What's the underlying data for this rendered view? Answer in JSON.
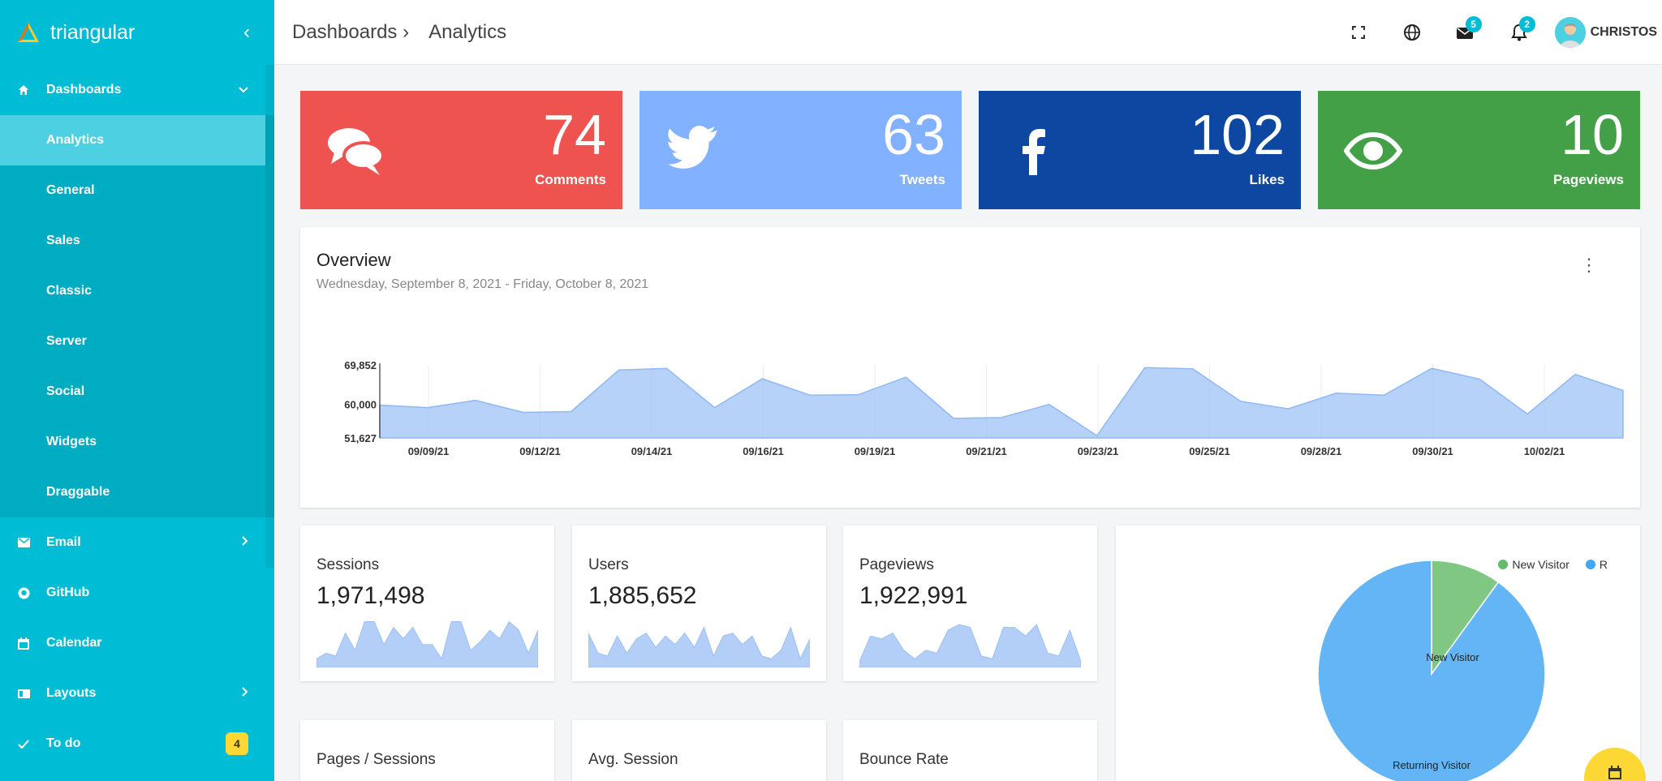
{
  "sidebar": {
    "brand": "triangular",
    "collapse_icon": "‹",
    "dashboards": {
      "label": "Dashboards",
      "items": [
        "Analytics",
        "General",
        "Sales",
        "Classic",
        "Server",
        "Social",
        "Widgets",
        "Draggable"
      ]
    },
    "email": "Email",
    "github": "GitHub",
    "calendar": "Calendar",
    "layouts": "Layouts",
    "todo": "To do",
    "todo_badge": "4"
  },
  "header": {
    "breadcrumb_1": "Dashboards ›",
    "breadcrumb_2": "Analytics",
    "mail_count": "5",
    "notif_count": "2",
    "user": "CHRISTOS"
  },
  "stats": [
    {
      "value": "74",
      "label": "Comments",
      "color": "#ef5350",
      "icon": "comments-icon"
    },
    {
      "value": "63",
      "label": "Tweets",
      "color": "#82b1ff",
      "icon": "twitter-icon"
    },
    {
      "value": "102",
      "label": "Likes",
      "color": "#0d47a1",
      "icon": "facebook-icon"
    },
    {
      "value": "10",
      "label": "Pageviews",
      "color": "#43a047",
      "icon": "eye-icon"
    }
  ],
  "overview": {
    "title": "Overview",
    "range": "Wednesday, September 8, 2021 - Friday, October 8, 2021"
  },
  "metrics": [
    {
      "label": "Sessions",
      "value": "1,971,498"
    },
    {
      "label": "Users",
      "value": "1,885,652"
    },
    {
      "label": "Pageviews",
      "value": "1,922,991"
    },
    {
      "label": "Pages / Sessions",
      "value": ""
    },
    {
      "label": "Avg. Session",
      "value": ""
    },
    {
      "label": "Bounce Rate",
      "value": ""
    }
  ],
  "chart_data": [
    {
      "type": "area",
      "y_tick_labels": [
        "69,852",
        "60,000",
        "51,627"
      ],
      "yticks": [
        69852,
        60000,
        51627
      ],
      "ylim": [
        51627,
        69852
      ],
      "x_tick_labels": [
        "09/09/21",
        "09/12/21",
        "09/14/21",
        "09/16/21",
        "09/19/21",
        "09/21/21",
        "09/23/21",
        "09/25/21",
        "09/28/21",
        "09/30/21",
        "10/02/21"
      ],
      "values": [
        59800,
        59200,
        61000,
        58000,
        58200,
        68600,
        69000,
        59200,
        66400,
        62300,
        62400,
        66800,
        56500,
        56700,
        60000,
        52200,
        69200,
        68900,
        60800,
        58900,
        62800,
        62300,
        69000,
        66300,
        57600,
        67500,
        63500
      ],
      "color": "#9fc3f7"
    },
    {
      "type": "pie",
      "legend": [
        "New Visitor",
        "R"
      ],
      "slice_labels": [
        "New Visitor",
        "Returning Visitor"
      ],
      "values": [
        10,
        90
      ],
      "colors": [
        "#81c784",
        "#64b5f6"
      ]
    }
  ],
  "sparklines": [
    [
      3,
      5,
      4,
      12,
      6,
      16,
      16,
      8,
      14,
      10,
      14,
      8,
      8,
      3,
      16,
      16,
      6,
      9,
      13,
      10,
      16,
      13,
      5,
      13
    ],
    [
      12,
      5,
      4,
      11,
      5,
      10,
      12,
      7,
      11,
      8,
      12,
      7,
      14,
      4,
      11,
      12,
      8,
      11,
      4,
      3,
      6,
      14,
      3,
      10
    ],
    [
      2,
      11,
      10,
      12,
      6,
      3,
      6,
      5,
      13,
      15,
      14,
      4,
      3,
      14,
      14,
      11,
      15,
      5,
      4,
      13,
      2
    ]
  ],
  "colors": {
    "sidebar": "#00bcd4",
    "sidebar_sub": "#00acc1",
    "active": "#4dd0e1",
    "fab": "#fdd835"
  }
}
